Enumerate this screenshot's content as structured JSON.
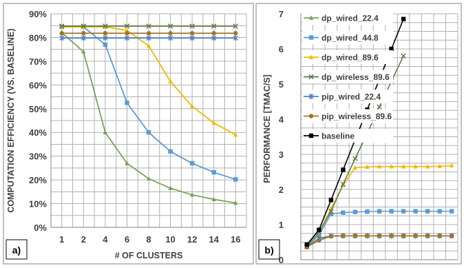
{
  "chart_data": [
    {
      "type": "line",
      "panel_label": "a)",
      "xlabel": "# OF CLUSTERS",
      "ylabel": "COMPUTATION EFFICIENCY (VS. BASELINE)",
      "categories": [
        "1",
        "2",
        "4",
        "6",
        "8",
        "10",
        "12",
        "14",
        "16"
      ],
      "y_ticks": [
        "0%",
        "10%",
        "20%",
        "30%",
        "40%",
        "50%",
        "60%",
        "70%",
        "80%",
        "90%"
      ],
      "ylim": [
        0,
        90
      ],
      "grid": true,
      "series": [
        {
          "color": "#77a35a",
          "marker": "triangle",
          "values": [
            82,
            74,
            40,
            27,
            20.5,
            16.5,
            13.7,
            11.8,
            10.3
          ]
        },
        {
          "color": "#5b9bd5",
          "marker": "square",
          "values": [
            84.5,
            84.5,
            77,
            52.5,
            40,
            32,
            27,
            23.2,
            20.2
          ]
        },
        {
          "color": "#f5b800",
          "marker": "triangle",
          "values": [
            84.5,
            84.5,
            84.5,
            83,
            76.5,
            61.5,
            51,
            44,
            39
          ]
        },
        {
          "color": "#5f7b4a",
          "marker": "x",
          "values": [
            84.8,
            84.8,
            84.8,
            84.8,
            84.8,
            84.8,
            84.8,
            84.8,
            84.8
          ]
        },
        {
          "color": "#4f81bd",
          "marker": "star",
          "values": [
            79.8,
            79.8,
            79.8,
            79.8,
            79.8,
            79.8,
            79.8,
            79.8,
            79.8
          ]
        },
        {
          "color": "#a0742a",
          "marker": "circle",
          "values": [
            81.8,
            81.8,
            81.8,
            81.8,
            81.8,
            81.8,
            81.8,
            81.8,
            81.8
          ]
        }
      ]
    },
    {
      "type": "line",
      "panel_label": "b)",
      "xlabel": "",
      "ylabel": "PERFORMANCE [TMAC/S]",
      "y_ticks": [
        "0",
        "1",
        "2",
        "3",
        "4",
        "5",
        "6",
        "7"
      ],
      "ylim": [
        0,
        7
      ],
      "grid": true,
      "legend_position": "top-left",
      "series": [
        {
          "name": "dp_wired_22.4",
          "color": "#77a35a",
          "marker": "triangle",
          "values": [
            0.35,
            0.62,
            0.67,
            0.68,
            0.68,
            0.68,
            0.68,
            0.68,
            0.68,
            0.68,
            0.68,
            0.68,
            0.68
          ]
        },
        {
          "name": "dp_wired_44.8",
          "color": "#5b9bd5",
          "marker": "square",
          "values": [
            0.38,
            0.7,
            1.3,
            1.34,
            1.36,
            1.37,
            1.38,
            1.38,
            1.38,
            1.38,
            1.38,
            1.38,
            1.38
          ]
        },
        {
          "name": "dp_wired_89.6",
          "color": "#f5b800",
          "marker": "triangle",
          "values": [
            0.35,
            0.78,
            1.45,
            2.12,
            2.62,
            2.64,
            2.65,
            2.65,
            2.65,
            2.65,
            2.65,
            2.66,
            2.68
          ]
        },
        {
          "name": "dp_wireless_89.6",
          "color": "#5f7b4a",
          "marker": "x",
          "values": [
            0.38,
            0.78,
            1.38,
            2.15,
            2.88,
            3.6,
            4.35,
            5.08,
            5.8
          ]
        },
        {
          "name": "pip_wired_22.4",
          "color": "#4f81bd",
          "marker": "star",
          "values": [
            0.38,
            0.6,
            0.68,
            0.68,
            0.68,
            0.68,
            0.68,
            0.68,
            0.68,
            0.68,
            0.68,
            0.68,
            0.68
          ]
        },
        {
          "name": "pip_wireless_89.6",
          "color": "#a0742a",
          "marker": "circle",
          "values": [
            0.36,
            0.55,
            0.67,
            0.68,
            0.68,
            0.68,
            0.68,
            0.68,
            0.68,
            0.68,
            0.68,
            0.68,
            0.68
          ]
        },
        {
          "name": "baseline",
          "color": "#000000",
          "marker": "square",
          "values": [
            0.43,
            0.85,
            1.7,
            2.56,
            3.42,
            4.27,
            5.13,
            6.0,
            6.85
          ]
        }
      ]
    }
  ]
}
